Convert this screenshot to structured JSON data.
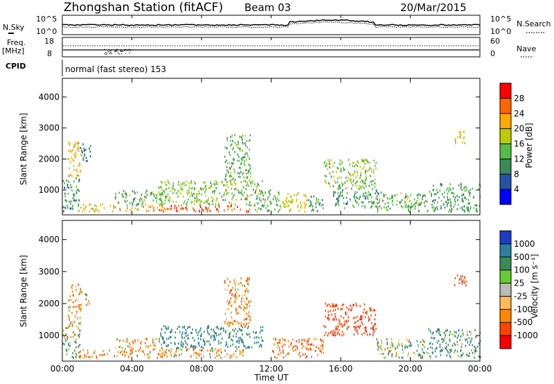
{
  "header": {
    "station": "Zhongshan Station (fitACF)",
    "beam": "Beam 03",
    "date": "20/Mar/2015"
  },
  "top_panels": {
    "noise": {
      "left_label": "N.Sky",
      "left_ticks": [
        "10^5",
        "10^0"
      ],
      "right_ticks": [
        "10^5",
        "10^0"
      ],
      "right_label": "N.Search"
    },
    "freq": {
      "left_label_1": "Freq.",
      "left_label_2": "[MHz]",
      "left_ticks": [
        "18",
        "8"
      ],
      "right_ticks": [
        "60",
        "0"
      ],
      "right_label": "Nave"
    },
    "cpid": {
      "label": "CPID",
      "text": "normal (fast stereo) 153"
    }
  },
  "x_axis": {
    "title": "Time UT",
    "ticks": [
      "00:00",
      "04:00",
      "08:00",
      "12:00",
      "16:00",
      "20:00",
      "00:00"
    ]
  },
  "power_panel": {
    "ylabel": "Slant Range [km]",
    "yticks": [
      "4000",
      "3000",
      "2000",
      "1000"
    ],
    "colorbar_title": "Power [dB]",
    "colorbar_ticks": [
      "28",
      "24",
      "20",
      "16",
      "12",
      "8",
      "4"
    ],
    "colors": [
      "#0000ff",
      "#2255aa",
      "#3a8a5a",
      "#55bb44",
      "#bbcc00",
      "#ffaa00",
      "#ff6600",
      "#ff0000"
    ]
  },
  "velocity_panel": {
    "ylabel": "Slant Range [km]",
    "yticks": [
      "4000",
      "3000",
      "2000",
      "1000"
    ],
    "colorbar_title": "Velocity [m s⁻¹]",
    "colorbar_ticks": [
      "1000",
      "500",
      "100",
      "25",
      "-25",
      "-100",
      "-500",
      "-1000"
    ],
    "colors": [
      "#1e3cc8",
      "#2a7fa0",
      "#3a8a5a",
      "#66cc33",
      "#bbbbbb",
      "#ffbb55",
      "#ff8800",
      "#ff4400",
      "#ff0000"
    ]
  },
  "chart_data": {
    "type": "heatmap",
    "title": "Zhongshan Station (fitACF) Beam 03 20/Mar/2015",
    "xlabel": "Time UT",
    "ylabel": "Slant Range [km]",
    "x_range_hours": [
      0,
      24
    ],
    "y_range_km": [
      200,
      4600
    ],
    "panels": [
      {
        "name": "Power [dB]",
        "scale": [
          0,
          30
        ],
        "regions": [
          {
            "t0": 0.0,
            "t1": 1.0,
            "r0": 300,
            "r1": 1400,
            "v": 10
          },
          {
            "t0": 0.3,
            "t1": 1.1,
            "r0": 1400,
            "r1": 2600,
            "v": 20
          },
          {
            "t0": 1.0,
            "t1": 1.6,
            "r0": 1900,
            "r1": 2500,
            "v": 8
          },
          {
            "t0": 1.0,
            "t1": 3.0,
            "r0": 300,
            "r1": 550,
            "v": 18
          },
          {
            "t0": 3.0,
            "t1": 6.0,
            "r0": 300,
            "r1": 500,
            "v": 22
          },
          {
            "t0": 3.0,
            "t1": 6.0,
            "r0": 500,
            "r1": 1000,
            "v": 12
          },
          {
            "t0": 6.0,
            "t1": 10.8,
            "r0": 300,
            "r1": 500,
            "v": 26
          },
          {
            "t0": 5.5,
            "t1": 11.5,
            "r0": 500,
            "r1": 1300,
            "v": 14
          },
          {
            "t0": 9.3,
            "t1": 10.8,
            "r0": 1300,
            "r1": 2800,
            "v": 12
          },
          {
            "t0": 11.0,
            "t1": 12.5,
            "r0": 300,
            "r1": 1000,
            "v": 12
          },
          {
            "t0": 12.5,
            "t1": 14.0,
            "r0": 300,
            "r1": 900,
            "v": 18
          },
          {
            "t0": 14.0,
            "t1": 15.0,
            "r0": 300,
            "r1": 800,
            "v": 10
          },
          {
            "t0": 15.5,
            "t1": 18.5,
            "r0": 400,
            "r1": 1000,
            "v": 10
          },
          {
            "t0": 15.0,
            "t1": 18.0,
            "r0": 1000,
            "r1": 2000,
            "v": 14
          },
          {
            "t0": 18.0,
            "t1": 21.0,
            "r0": 300,
            "r1": 900,
            "v": 12
          },
          {
            "t0": 21.0,
            "t1": 24.0,
            "r0": 300,
            "r1": 1200,
            "v": 11
          },
          {
            "t0": 22.5,
            "t1": 23.2,
            "r0": 2500,
            "r1": 2900,
            "v": 18
          }
        ]
      },
      {
        "name": "Velocity [m s^-1]",
        "scale": [
          -1000,
          1000
        ],
        "regions": [
          {
            "t0": 0.0,
            "t1": 1.0,
            "r0": 300,
            "r1": 1400,
            "v": 100
          },
          {
            "t0": 0.3,
            "t1": 1.1,
            "r0": 1400,
            "r1": 2600,
            "v": -200
          },
          {
            "t0": 1.2,
            "t1": 1.6,
            "r0": 1900,
            "r1": 2300,
            "v": 0
          },
          {
            "t0": 1.0,
            "t1": 3.0,
            "r0": 300,
            "r1": 550,
            "v": -200
          },
          {
            "t0": 3.0,
            "t1": 6.0,
            "r0": 300,
            "r1": 900,
            "v": -150
          },
          {
            "t0": 6.0,
            "t1": 10.8,
            "r0": 300,
            "r1": 600,
            "v": -100
          },
          {
            "t0": 5.5,
            "t1": 11.5,
            "r0": 600,
            "r1": 1300,
            "v": 300
          },
          {
            "t0": 9.3,
            "t1": 10.8,
            "r0": 1300,
            "r1": 2800,
            "v": -200
          },
          {
            "t0": 12.0,
            "t1": 15.0,
            "r0": 300,
            "r1": 900,
            "v": -300
          },
          {
            "t0": 15.0,
            "t1": 18.0,
            "r0": 1000,
            "r1": 2000,
            "v": -600
          },
          {
            "t0": 18.0,
            "t1": 21.0,
            "r0": 300,
            "r1": 900,
            "v": 80
          },
          {
            "t0": 21.0,
            "t1": 24.0,
            "r0": 300,
            "r1": 1200,
            "v": 200
          },
          {
            "t0": 22.5,
            "t1": 23.2,
            "r0": 2500,
            "r1": 2900,
            "v": -600
          }
        ]
      }
    ]
  }
}
